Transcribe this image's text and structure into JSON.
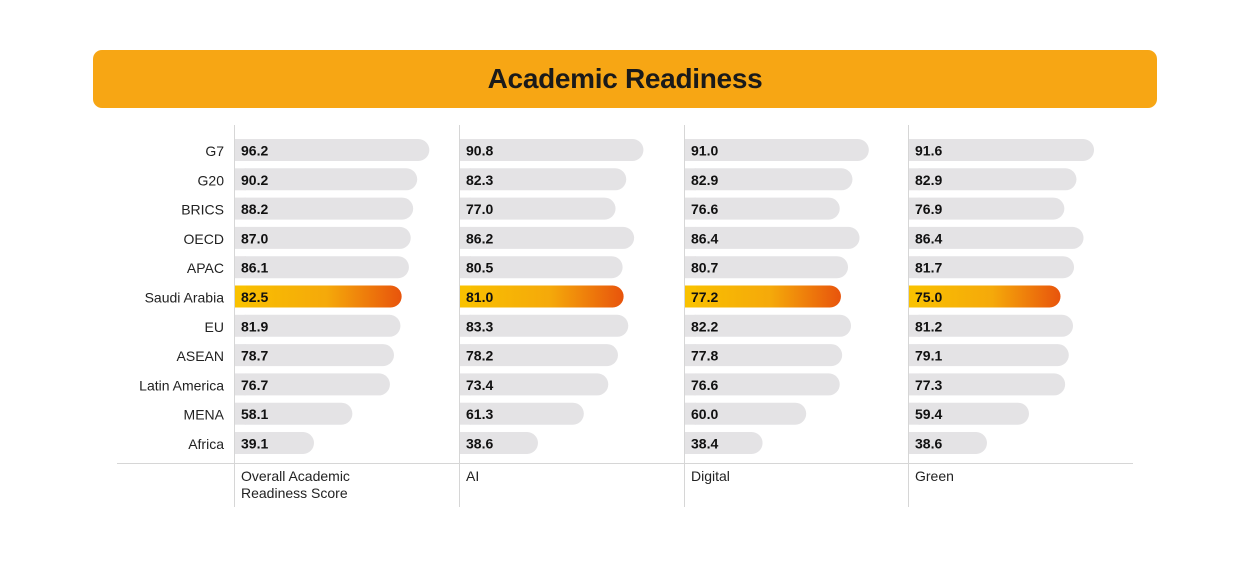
{
  "title": "Academic Readiness",
  "colors": {
    "banner": "#f7a614",
    "bar": "#e4e3e5",
    "highlight_start": "#f9c100",
    "highlight_end": "#e8540c",
    "divider": "#d6d6d6"
  },
  "chart_data": {
    "type": "bar",
    "orientation": "horizontal",
    "title": "Academic Readiness",
    "highlight": "Saudi Arabia",
    "categories": [
      "G7",
      "G20",
      "BRICS",
      "OECD",
      "APAC",
      "Saudi Arabia",
      "EU",
      "ASEAN",
      "Latin America",
      "MENA",
      "Africa"
    ],
    "series": [
      {
        "name": [
          "Overall Academic",
          "Readiness Score"
        ],
        "values": [
          "96.2",
          "90.2",
          "88.2",
          "87.0",
          "86.1",
          "82.5",
          "81.9",
          "78.7",
          "76.7",
          "58.1",
          "39.1"
        ]
      },
      {
        "name": [
          "AI"
        ],
        "values": [
          "90.8",
          "82.3",
          "77.0",
          "86.2",
          "80.5",
          "81.0",
          "83.3",
          "78.2",
          "73.4",
          "61.3",
          "38.6"
        ]
      },
      {
        "name": [
          "Digital"
        ],
        "values": [
          "91.0",
          "82.9",
          "76.6",
          "86.4",
          "80.7",
          "77.2",
          "82.2",
          "77.8",
          "76.6",
          "60.0",
          "38.4"
        ]
      },
      {
        "name": [
          "Green"
        ],
        "values": [
          "91.6",
          "82.9",
          "76.9",
          "86.4",
          "81.7",
          "75.0",
          "81.2",
          "79.1",
          "77.3",
          "59.4",
          "38.6"
        ]
      }
    ],
    "grid": false,
    "legend": "none"
  }
}
